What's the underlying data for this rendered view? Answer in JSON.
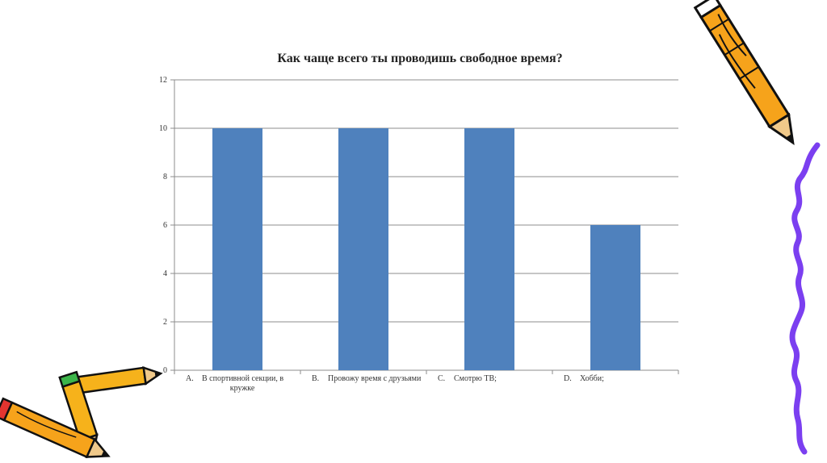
{
  "chart_data": {
    "type": "bar",
    "title": "Как чаще всего ты проводишь свободное время?",
    "categories": [
      {
        "letter": "A.",
        "lines": [
          "В спортивной секции, в",
          "кружке"
        ]
      },
      {
        "letter": "B.",
        "lines": [
          "Провожу время с друзьями"
        ]
      },
      {
        "letter": "C.",
        "lines": [
          "Смотрю ТВ;"
        ]
      },
      {
        "letter": "D.",
        "lines": [
          "Хобби;"
        ]
      }
    ],
    "values": [
      10,
      10,
      10,
      6
    ],
    "ylim": [
      0,
      12
    ],
    "yticks": [
      "0",
      "2",
      "4",
      "6",
      "8",
      "10",
      "12"
    ],
    "grid": true,
    "bar_color": "#4F81BD",
    "xlabel": "",
    "ylabel": ""
  },
  "decorations": {
    "top_right": "pencil-with-purple-squiggle",
    "bottom_left": "crossed-pencils"
  }
}
